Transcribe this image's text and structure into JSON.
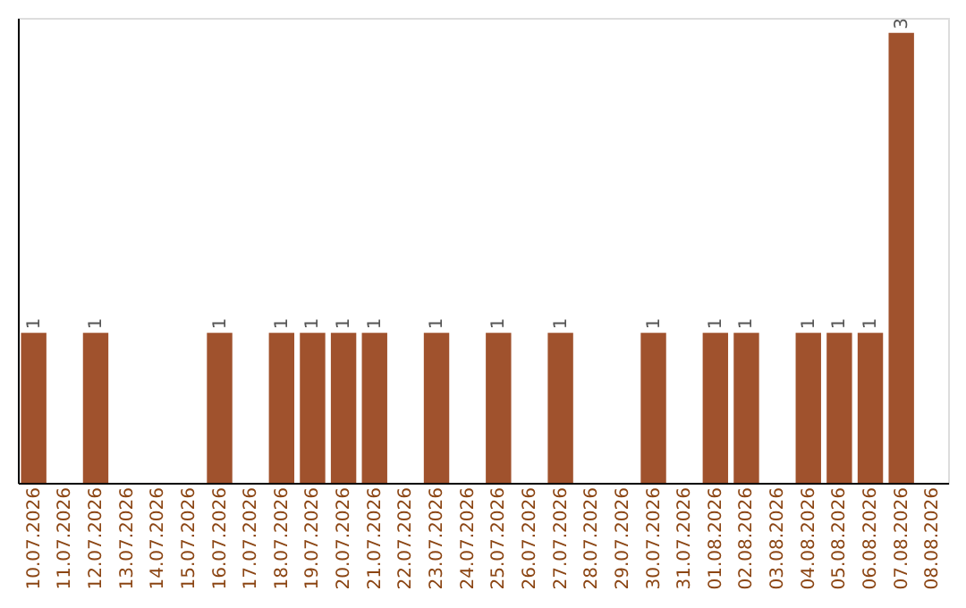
{
  "chart_data": {
    "type": "bar",
    "categories": [
      "10.07.2026",
      "11.07.2026",
      "12.07.2026",
      "13.07.2026",
      "14.07.2026",
      "15.07.2026",
      "16.07.2026",
      "17.07.2026",
      "18.07.2026",
      "19.07.2026",
      "20.07.2026",
      "21.07.2026",
      "22.07.2026",
      "23.07.2026",
      "24.07.2026",
      "25.07.2026",
      "26.07.2026",
      "27.07.2026",
      "28.07.2026",
      "29.07.2026",
      "30.07.2026",
      "31.07.2026",
      "01.08.2026",
      "02.08.2026",
      "03.08.2026",
      "04.08.2026",
      "05.08.2026",
      "06.08.2026",
      "07.08.2026",
      "08.08.2026"
    ],
    "values": [
      1,
      0,
      1,
      0,
      0,
      0,
      1,
      0,
      1,
      1,
      1,
      1,
      0,
      1,
      0,
      1,
      0,
      1,
      0,
      0,
      1,
      0,
      1,
      1,
      0,
      1,
      1,
      1,
      3,
      0
    ],
    "value_labels": [
      "1",
      null,
      "1",
      null,
      null,
      null,
      "1",
      null,
      "1",
      "1",
      "1",
      "1",
      null,
      "1",
      null,
      "1",
      null,
      "1",
      null,
      null,
      "1",
      null,
      "1",
      "1",
      null,
      "1",
      "1",
      "1",
      "3",
      null
    ],
    "color": "#a0522d",
    "ylim": [
      0,
      3.1
    ],
    "tick_labels": "x"
  }
}
